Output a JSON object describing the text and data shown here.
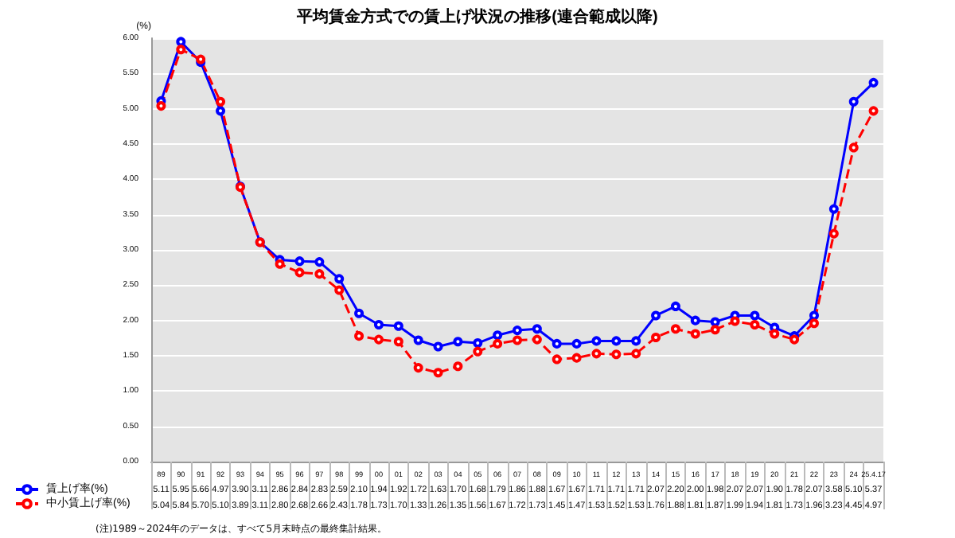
{
  "chart_data": {
    "type": "line",
    "title": "平均賃金方式での賃上げ状況の推移(連合範成以降)",
    "ylabel": "(%)",
    "categories": [
      "89",
      "90",
      "91",
      "92",
      "93",
      "94",
      "95",
      "96",
      "97",
      "98",
      "99",
      "00",
      "01",
      "02",
      "03",
      "04",
      "05",
      "06",
      "07",
      "08",
      "09",
      "10",
      "11",
      "12",
      "13",
      "14",
      "15",
      "16",
      "17",
      "18",
      "19",
      "20",
      "21",
      "22",
      "23",
      "24",
      "25.4.17"
    ],
    "series": [
      {
        "name": "賃上げ率(%)",
        "color": "#0000ff",
        "line_style": "solid",
        "values": [
          5.11,
          5.95,
          5.66,
          4.97,
          3.9,
          3.11,
          2.86,
          2.84,
          2.83,
          2.59,
          2.1,
          1.94,
          1.92,
          1.72,
          1.63,
          1.7,
          1.68,
          1.79,
          1.86,
          1.88,
          1.67,
          1.67,
          1.71,
          1.71,
          1.71,
          2.07,
          2.2,
          2.0,
          1.98,
          2.07,
          2.07,
          1.9,
          1.78,
          2.07,
          3.58,
          5.1,
          5.37
        ],
        "value_labels": [
          "5.11",
          "5.95",
          "5.66",
          "4.97",
          "3.90",
          "3.11",
          "2.86",
          "2.84",
          "2.83",
          "2.59",
          "2.10",
          "1.94",
          "1.92",
          "1.72",
          "1.63",
          "1.70",
          "1.68",
          "1.79",
          "1.86",
          "1.88",
          "1.67",
          "1.67",
          "1.71",
          "1.71",
          "1.71",
          "2.07",
          "2.20",
          "2.00",
          "1.98",
          "2.07",
          "2.07",
          "1.90",
          "1.78",
          "2.07",
          "3.58",
          "5.10",
          "5.37"
        ]
      },
      {
        "name": "中小賃上げ率(%)",
        "color": "#ff0000",
        "line_style": "dashed",
        "values": [
          5.04,
          5.84,
          5.7,
          5.1,
          3.89,
          3.11,
          2.8,
          2.68,
          2.66,
          2.43,
          1.78,
          1.73,
          1.7,
          1.33,
          1.26,
          1.35,
          1.56,
          1.67,
          1.72,
          1.73,
          1.45,
          1.47,
          1.53,
          1.52,
          1.53,
          1.76,
          1.88,
          1.81,
          1.87,
          1.99,
          1.94,
          1.81,
          1.73,
          1.96,
          3.23,
          4.45,
          4.97
        ],
        "value_labels": [
          "5.04",
          "5.84",
          "5.70",
          "5.10",
          "3.89",
          "3.11",
          "2.80",
          "2.68",
          "2.66",
          "2.43",
          "1.78",
          "1.73",
          "1.70",
          "1.33",
          "1.26",
          "1.35",
          "1.56",
          "1.67",
          "1.72",
          "1.73",
          "1.45",
          "1.47",
          "1.53",
          "1.52",
          "1.53",
          "1.76",
          "1.88",
          "1.81",
          "1.87",
          "1.99",
          "1.94",
          "1.81",
          "1.73",
          "1.96",
          "3.23",
          "4.45",
          "4.97"
        ]
      }
    ],
    "ylim": [
      0,
      6
    ],
    "yticks": [
      {
        "value": 0,
        "label": "0.00"
      },
      {
        "value": 0.5,
        "label": "0.50"
      },
      {
        "value": 1,
        "label": "1.00"
      },
      {
        "value": 1.5,
        "label": "1.50"
      },
      {
        "value": 2,
        "label": "2.00"
      },
      {
        "value": 2.5,
        "label": "2.50"
      },
      {
        "value": 3,
        "label": "3.00"
      },
      {
        "value": 3.5,
        "label": "3.50"
      },
      {
        "value": 4,
        "label": "4.00"
      },
      {
        "value": 4.5,
        "label": "4.50"
      },
      {
        "value": 5,
        "label": "5.00"
      },
      {
        "value": 5.5,
        "label": "5.50"
      },
      {
        "value": 6,
        "label": "6.00"
      }
    ],
    "grid": "y",
    "marker": "circle",
    "legend": "bottom",
    "annotations": [
      "(注)1989～2024年のデータは、すべて5月末時点の最終集計結果。"
    ]
  }
}
